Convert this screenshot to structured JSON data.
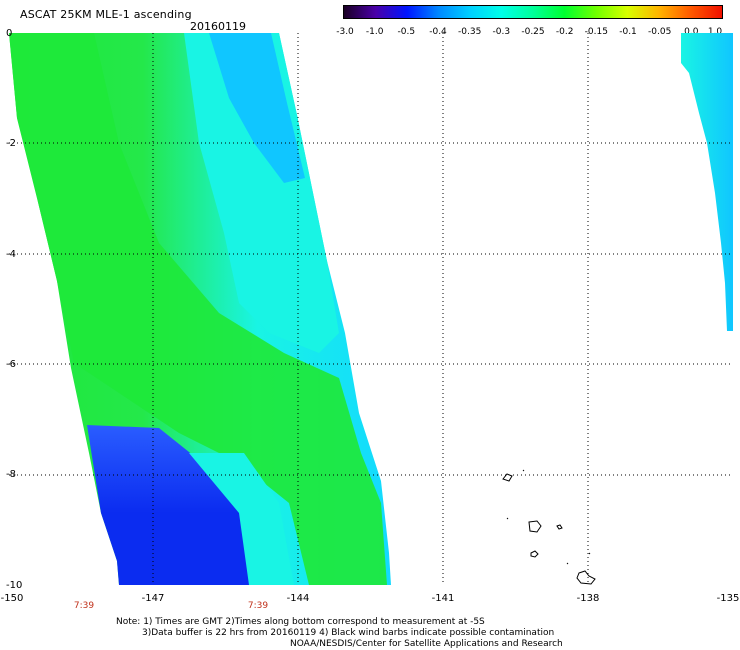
{
  "header": {
    "title": "ASCAT 25KM MLE-1 ascending",
    "date": "20160119"
  },
  "colorbar": {
    "ticks": [
      "-3.0",
      "-1.0",
      "-0.5",
      "-0.4",
      "-0.35",
      "-0.3",
      "-0.25",
      "-0.2",
      "-0.15",
      "-0.1",
      "-0.05",
      "0.0",
      "1.0"
    ],
    "colors": [
      "#1a0024",
      "#4a00a8",
      "#0015ff",
      "#0088ff",
      "#00d0ff",
      "#00ffe8",
      "#00ff9a",
      "#00ff30",
      "#70ff00",
      "#d8ff00",
      "#ffb400",
      "#ff5a00",
      "#f01000"
    ]
  },
  "map": {
    "lat_labels": [
      "0",
      "-2",
      "-4",
      "-6",
      "-8",
      "-10"
    ],
    "lon_labels": [
      "-150",
      "-147",
      "-144",
      "-141",
      "-138",
      "-135"
    ],
    "pass_times": [
      "7:39",
      "7:39"
    ],
    "swath_colors": {
      "green": "#1ee83a",
      "green_light": "#4cff6a",
      "cyan": "#19f4e4",
      "cyan_blue": "#10c6ff",
      "blue_mid": "#1a6cff",
      "blue_deep": "#0b2cf0",
      "land_outline": "#000000",
      "time_color": "#c0301a"
    }
  },
  "footer": {
    "note_line1": "Note: 1) Times are GMT 2)Times along bottom correspond to measurement at -5S",
    "note_line2": "3)Data buffer is 22 hrs from 20160119 4) Black wind barbs indicate possible contamination",
    "note_line3": "NOAA/NESDIS/Center for Satellite Applications and Research"
  }
}
